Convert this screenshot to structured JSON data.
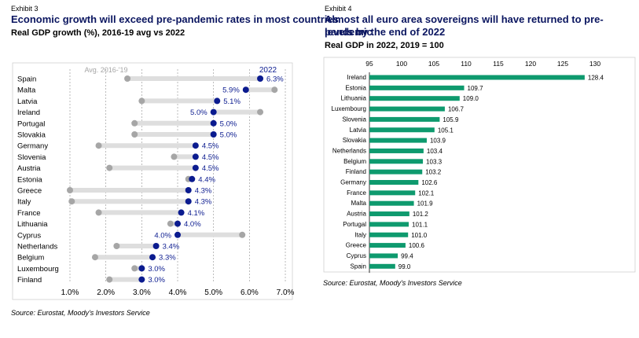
{
  "left": {
    "exhibit": "Exhibit 3",
    "title": "Economic growth will exceed pre-pandemic rates in most countries",
    "subtitle": "Real GDP growth (%), 2016-19 avg vs 2022",
    "source": "Source: Eurostat, Moody's Investors Service"
  },
  "right": {
    "exhibit": "Exhibit 4",
    "title_line1": "Almost all euro area sovereigns will have returned to pre-pandemic",
    "title_line2": "levels by the end of 2022",
    "subtitle": "Real GDP in 2022, 2019 = 100",
    "source": "Source: Eurostat, Moody's Investors Service"
  },
  "colors": {
    "navy": "#0b1b8f",
    "grey_dot": "#a6a6a6",
    "range_bar": "#dedede",
    "green": "#0e9a6e"
  },
  "chart_data": [
    {
      "type": "dumbbell",
      "series": [
        {
          "name": "Avg. 2016-'19"
        },
        {
          "name": "2022"
        }
      ],
      "xlim": [
        1.0,
        7.0
      ],
      "xticks": [
        "1.0%",
        "2.0%",
        "3.0%",
        "4.0%",
        "5.0%",
        "6.0%",
        "7.0%"
      ],
      "rows": [
        {
          "country": "Spain",
          "avg": 2.6,
          "y2022": 6.3,
          "label": "6.3%"
        },
        {
          "country": "Malta",
          "avg": 6.7,
          "y2022": 5.9,
          "label": "5.9%"
        },
        {
          "country": "Latvia",
          "avg": 3.0,
          "y2022": 5.1,
          "label": "5.1%"
        },
        {
          "country": "Ireland",
          "avg": 6.3,
          "y2022": 5.0,
          "label": "5.0%"
        },
        {
          "country": "Portugal",
          "avg": 2.8,
          "y2022": 5.0,
          "label": "5.0%"
        },
        {
          "country": "Slovakia",
          "avg": 2.8,
          "y2022": 5.0,
          "label": "5.0%"
        },
        {
          "country": "Germany",
          "avg": 1.8,
          "y2022": 4.5,
          "label": "4.5%"
        },
        {
          "country": "Slovenia",
          "avg": 3.9,
          "y2022": 4.5,
          "label": "4.5%"
        },
        {
          "country": "Austria",
          "avg": 2.1,
          "y2022": 4.5,
          "label": "4.5%"
        },
        {
          "country": "Estonia",
          "avg": 4.3,
          "y2022": 4.4,
          "label": "4.4%"
        },
        {
          "country": "Greece",
          "avg": 1.0,
          "y2022": 4.3,
          "label": "4.3%"
        },
        {
          "country": "Italy",
          "avg": 1.05,
          "y2022": 4.3,
          "label": "4.3%"
        },
        {
          "country": "France",
          "avg": 1.8,
          "y2022": 4.1,
          "label": "4.1%"
        },
        {
          "country": "Lithuania",
          "avg": 3.8,
          "y2022": 4.0,
          "label": "4.0%"
        },
        {
          "country": "Cyprus",
          "avg": 5.8,
          "y2022": 4.0,
          "label": "4.0%"
        },
        {
          "country": "Netherlands",
          "avg": 2.3,
          "y2022": 3.4,
          "label": "3.4%"
        },
        {
          "country": "Belgium",
          "avg": 1.7,
          "y2022": 3.3,
          "label": "3.3%"
        },
        {
          "country": "Luxembourg",
          "avg": 2.8,
          "y2022": 3.0,
          "label": "3.0%"
        },
        {
          "country": "Finland",
          "avg": 2.1,
          "y2022": 3.0,
          "label": "3.0%"
        }
      ]
    },
    {
      "type": "bar",
      "orientation": "horizontal",
      "xlim": [
        95,
        130
      ],
      "xticks": [
        "95",
        "100",
        "105",
        "110",
        "115",
        "120",
        "125",
        "130"
      ],
      "categories": [
        "Ireland",
        "Estonia",
        "Lithuania",
        "Luxembourg",
        "Slovenia",
        "Latvia",
        "Slovakia",
        "Netherlands",
        "Belgium",
        "Finland",
        "Germany",
        "France",
        "Malta",
        "Austria",
        "Portugal",
        "Italy",
        "Greece",
        "Cyprus",
        "Spain"
      ],
      "values": [
        128.4,
        109.7,
        109.0,
        106.7,
        105.9,
        105.1,
        103.9,
        103.4,
        103.3,
        103.2,
        102.6,
        102.1,
        101.9,
        101.2,
        101.1,
        101.0,
        100.6,
        99.4,
        99.0
      ],
      "labels": [
        "128.4",
        "109.7",
        "109.0",
        "106.7",
        "105.9",
        "105.1",
        "103.9",
        "103.4",
        "103.3",
        "103.2",
        "102.6",
        "102.1",
        "101.9",
        "101.2",
        "101.1",
        "101.0",
        "100.6",
        "99.4",
        "99.0"
      ]
    }
  ]
}
